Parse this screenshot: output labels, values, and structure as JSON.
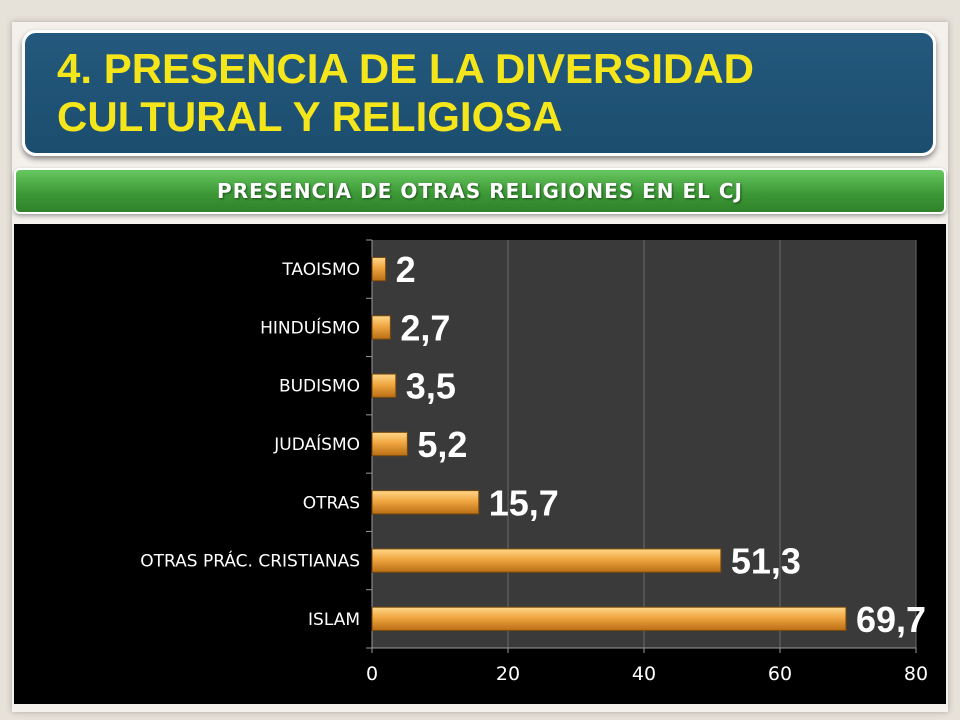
{
  "slide": {
    "title": "4. PRESENCIA DE LA DIVERSIDAD CULTURAL Y RELIGIOSA",
    "subtitle": "PRESENCIA DE OTRAS RELIGIONES EN EL CJ"
  },
  "colors": {
    "title_bg": "#1b4d6e",
    "title_text": "#f4e61b",
    "subtitle_bg": "#3d9a37",
    "plot_bg": "#3a3a3a",
    "bar_fill": "#f0a640",
    "data_label": "#ffffff",
    "tick_label": "#ffffff"
  },
  "chart_data": {
    "type": "bar",
    "orientation": "horizontal",
    "categories": [
      "TAOISMO",
      "HINDUÍSMO",
      "BUDISMO",
      "JUDAÍSMO",
      "OTRAS",
      "OTRAS PRÁC. CRISTIANAS",
      "ISLAM"
    ],
    "values": [
      2,
      2.7,
      3.5,
      5.2,
      15.7,
      51.3,
      69.7
    ],
    "data_labels": [
      "2",
      "2,7",
      "3,5",
      "5,2",
      "15,7",
      "51,3",
      "69,7"
    ],
    "xlim": [
      0,
      80
    ],
    "xticks": [
      0,
      20,
      40,
      60,
      80
    ],
    "grid": true,
    "legend": "none",
    "title": "",
    "xlabel": "",
    "ylabel": ""
  }
}
